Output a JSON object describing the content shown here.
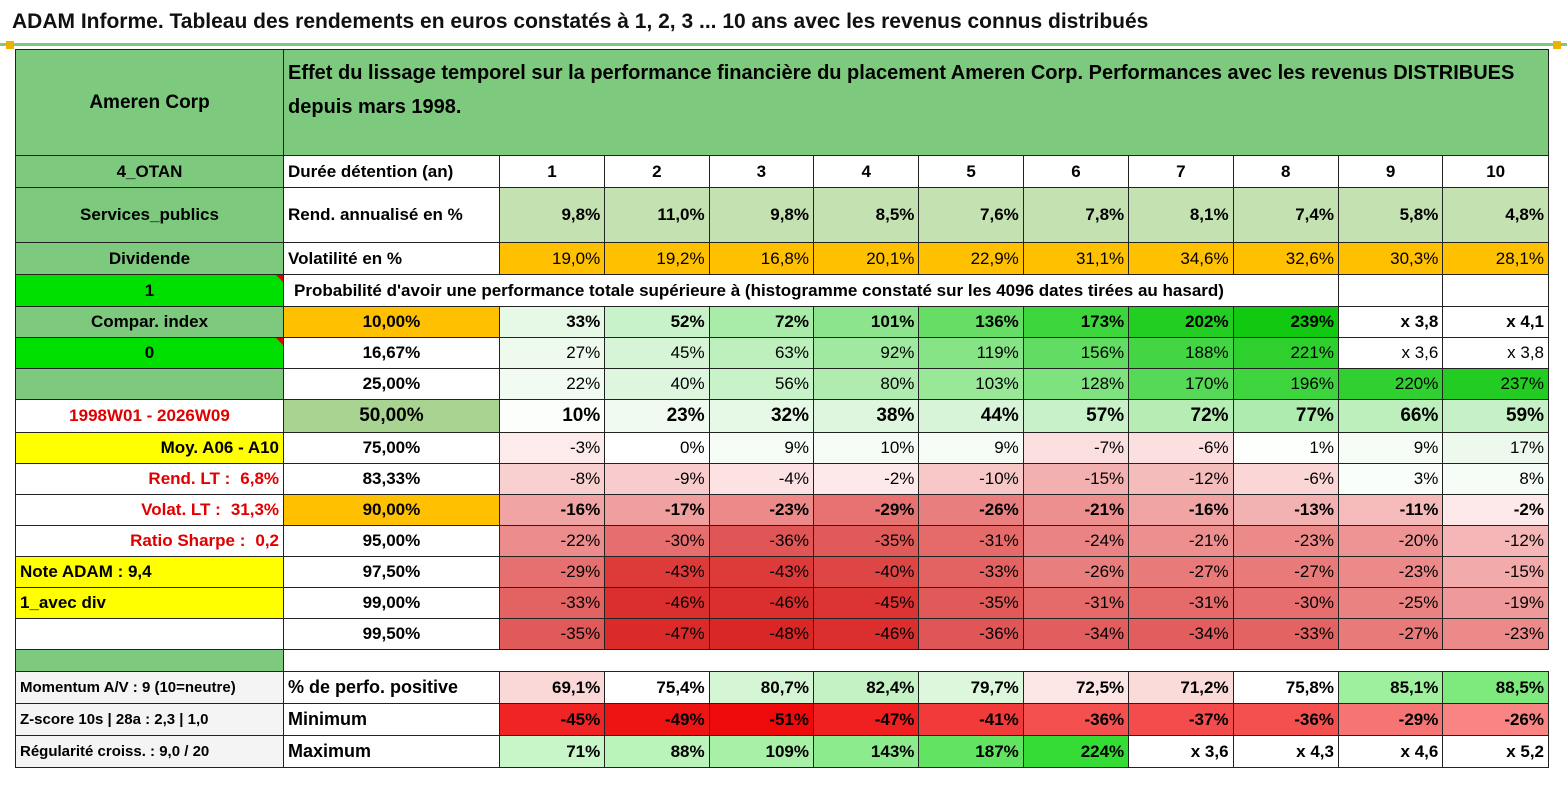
{
  "title": "ADAM Informe. Tableau des rendements en euros constatés à 1, 2, 3 ... 10 ans avec les revenus connus distribués",
  "header": {
    "left": "Ameren Corp",
    "description": "Effet du lissage temporel sur la performance financière du placement Ameren Corp. Performances avec les revenus DISTRIBUES depuis mars 1998."
  },
  "years": [
    "1",
    "2",
    "3",
    "4",
    "5",
    "6",
    "7",
    "8",
    "9",
    "10"
  ],
  "info_rows": [
    {
      "left": "4_OTAN",
      "label": "Durée détention (an)"
    },
    {
      "left": "Services_publics",
      "label": "Rend. annualisé en %",
      "values": [
        "9,8%",
        "11,0%",
        "9,8%",
        "8,5%",
        "7,6%",
        "7,8%",
        "8,1%",
        "7,4%",
        "5,8%",
        "4,8%"
      ]
    },
    {
      "left": "Dividende",
      "label": "Volatilité en %",
      "values": [
        "19,0%",
        "19,2%",
        "16,8%",
        "20,1%",
        "22,9%",
        "31,1%",
        "34,6%",
        "32,6%",
        "30,3%",
        "28,1%"
      ]
    }
  ],
  "prob_header": {
    "left": "1",
    "text": "Probabilité d'avoir une performance totale supérieure à (histogramme constaté sur les 4096 dates tirées au hasard)"
  },
  "prob_rows": [
    {
      "left": "Compar. index",
      "level": "10,00%",
      "values": [
        "33%",
        "52%",
        "72%",
        "101%",
        "136%",
        "173%",
        "202%",
        "239%",
        "x 3,8",
        "x 4,1"
      ],
      "colors": [
        "#e6f8e6",
        "#c8f2c8",
        "#a9eba9",
        "#8ce58c",
        "#66de66",
        "#3cd53c",
        "#22ce22",
        "#12c912",
        "#ffffff",
        "#ffffff"
      ]
    },
    {
      "left": "0",
      "level": "16,67%",
      "values": [
        "27%",
        "45%",
        "63%",
        "92%",
        "119%",
        "156%",
        "188%",
        "221%",
        "x 3,6",
        "x 3,8"
      ],
      "colors": [
        "#eefaee",
        "#d6f5d6",
        "#bdf0bd",
        "#a0e9a0",
        "#86e486",
        "#62dc62",
        "#44d544",
        "#2ed02e",
        "#ffffff",
        "#ffffff"
      ]
    },
    {
      "left": "",
      "level": "25,00%",
      "values": [
        "22%",
        "40%",
        "56%",
        "80%",
        "103%",
        "128%",
        "170%",
        "196%",
        "220%",
        "237%"
      ],
      "colors": [
        "#f2fbf2",
        "#ddf6dd",
        "#c8f2c8",
        "#b0ecb0",
        "#98e898",
        "#7ee27e",
        "#56d956",
        "#3dd43d",
        "#30d030",
        "#22cc22"
      ]
    },
    {
      "left": "1998W01 - 2026W09",
      "level": "50,00%",
      "values": [
        "10%",
        "23%",
        "32%",
        "38%",
        "44%",
        "57%",
        "72%",
        "77%",
        "66%",
        "59%"
      ],
      "colors": [
        "#fbfefb",
        "#f0faf0",
        "#e6f8e6",
        "#def6de",
        "#d8f4d8",
        "#c8f1c8",
        "#b5edb5",
        "#aeebae",
        "#bcefbc",
        "#c6f1c6"
      ]
    },
    {
      "left": "Moy. A06 - A10",
      "level": "75,00%",
      "values": [
        "-3%",
        "0%",
        "9%",
        "10%",
        "9%",
        "-7%",
        "-6%",
        "1%",
        "9%",
        "17%"
      ],
      "colors": [
        "#fdeaea",
        "#ffffff",
        "#f6fcf6",
        "#f5fcf5",
        "#f6fcf6",
        "#fbdede",
        "#fce0e0",
        "#fcfffc",
        "#f6fcf6",
        "#edf9ed"
      ]
    },
    {
      "left": "Rend. LT :",
      "left_value": "6,8%",
      "level": "83,33%",
      "values": [
        "-8%",
        "-9%",
        "-4%",
        "-2%",
        "-10%",
        "-15%",
        "-12%",
        "-6%",
        "3%",
        "8%"
      ],
      "colors": [
        "#f9d0d0",
        "#f8cccc",
        "#fce2e2",
        "#fde9e9",
        "#f7c6c6",
        "#f3b0b0",
        "#f5bcbc",
        "#fad6d6",
        "#fafefa",
        "#f6fcf6"
      ]
    },
    {
      "left": "Volat. LT :",
      "left_value": "31,3%",
      "level": "90,00%",
      "values": [
        "-16%",
        "-17%",
        "-23%",
        "-29%",
        "-26%",
        "-21%",
        "-16%",
        "-13%",
        "-11%",
        "-2%"
      ],
      "colors": [
        "#f0a4a4",
        "#f09f9f",
        "#ec8a8a",
        "#e77272",
        "#e97e7e",
        "#ed8f8f",
        "#f0a4a4",
        "#f3b2b2",
        "#f5baba",
        "#fde9e9"
      ]
    },
    {
      "left": "Ratio Sharpe :",
      "left_value": "0,2",
      "level": "95,00%",
      "values": [
        "-22%",
        "-30%",
        "-36%",
        "-35%",
        "-31%",
        "-24%",
        "-21%",
        "-23%",
        "-20%",
        "-12%"
      ],
      "colors": [
        "#ec8c8c",
        "#e66e6e",
        "#e05656",
        "#e15a5a",
        "#e56a6a",
        "#ea8484",
        "#ed8f8f",
        "#ec8a8a",
        "#ee9494",
        "#f4b6b6"
      ]
    },
    {
      "left": "Note ADAM : 9,4",
      "level": "97,50%",
      "values": [
        "-29%",
        "-43%",
        "-43%",
        "-40%",
        "-33%",
        "-26%",
        "-27%",
        "-27%",
        "-23%",
        "-15%"
      ],
      "colors": [
        "#e67070",
        "#dd3a3a",
        "#dd3a3a",
        "#de4646",
        "#e36262",
        "#e97e7e",
        "#e87a7a",
        "#e87a7a",
        "#ec8a8a",
        "#f2aaaa"
      ]
    },
    {
      "left": "1_avec div",
      "level": "99,00%",
      "values": [
        "-33%",
        "-46%",
        "-46%",
        "-45%",
        "-35%",
        "-31%",
        "-31%",
        "-30%",
        "-25%",
        "-19%"
      ],
      "colors": [
        "#e36262",
        "#db2e2e",
        "#db2e2e",
        "#dc3434",
        "#e15a5a",
        "#e56a6a",
        "#e56a6a",
        "#e66e6e",
        "#ea8282",
        "#ef9a9a"
      ]
    },
    {
      "left": "",
      "level": "99,50%",
      "values": [
        "-35%",
        "-47%",
        "-48%",
        "-46%",
        "-36%",
        "-34%",
        "-34%",
        "-33%",
        "-27%",
        "-23%"
      ],
      "colors": [
        "#e15a5a",
        "#da2a2a",
        "#d92626",
        "#db2e2e",
        "#e05656",
        "#e25e5e",
        "#e25e5e",
        "#e36262",
        "#e87a7a",
        "#ec8a8a"
      ]
    }
  ],
  "stats_rows": [
    {
      "left": "Momentum A/V : 9 (10=neutre)",
      "label": "% de perfo. positive",
      "values": [
        "69,1%",
        "75,4%",
        "80,7%",
        "82,4%",
        "79,7%",
        "72,5%",
        "71,2%",
        "75,8%",
        "85,1%",
        "88,5%"
      ],
      "colors": [
        "#fbd8d8",
        "#ffffff",
        "#d4f5d4",
        "#c4f2c4",
        "#dcf7dc",
        "#fce6e6",
        "#fbdada",
        "#ffffff",
        "#9ef09e",
        "#7eea7e"
      ]
    },
    {
      "left": "Z-score 10s | 28a : 2,3 | 1,0",
      "label": "Minimum",
      "values": [
        "-45%",
        "-49%",
        "-51%",
        "-47%",
        "-41%",
        "-36%",
        "-37%",
        "-36%",
        "-29%",
        "-26%"
      ],
      "colors": [
        "#f02424",
        "#ee1414",
        "#ee0a0a",
        "#f02020",
        "#f23a3a",
        "#f45050",
        "#f44c4c",
        "#f45050",
        "#f77474",
        "#f88484"
      ]
    },
    {
      "left": "Régularité croiss. : 9,0 / 20",
      "label": "Maximum",
      "values": [
        "71%",
        "88%",
        "109%",
        "143%",
        "187%",
        "224%",
        "x 3,6",
        "x 4,3",
        "x 4,6",
        "x 5,2"
      ],
      "colors": [
        "#c8f6c8",
        "#baf4ba",
        "#a8f0a8",
        "#8ceb8c",
        "#62e462",
        "#36dc36",
        "#ffffff",
        "#ffffff",
        "#ffffff",
        "#ffffff"
      ]
    }
  ],
  "colors": {
    "header_green": "#7dc97d",
    "orange": "#ffc000",
    "yellow": "#ffff00",
    "bright_green": "#00e000",
    "red_text": "#e00000"
  }
}
